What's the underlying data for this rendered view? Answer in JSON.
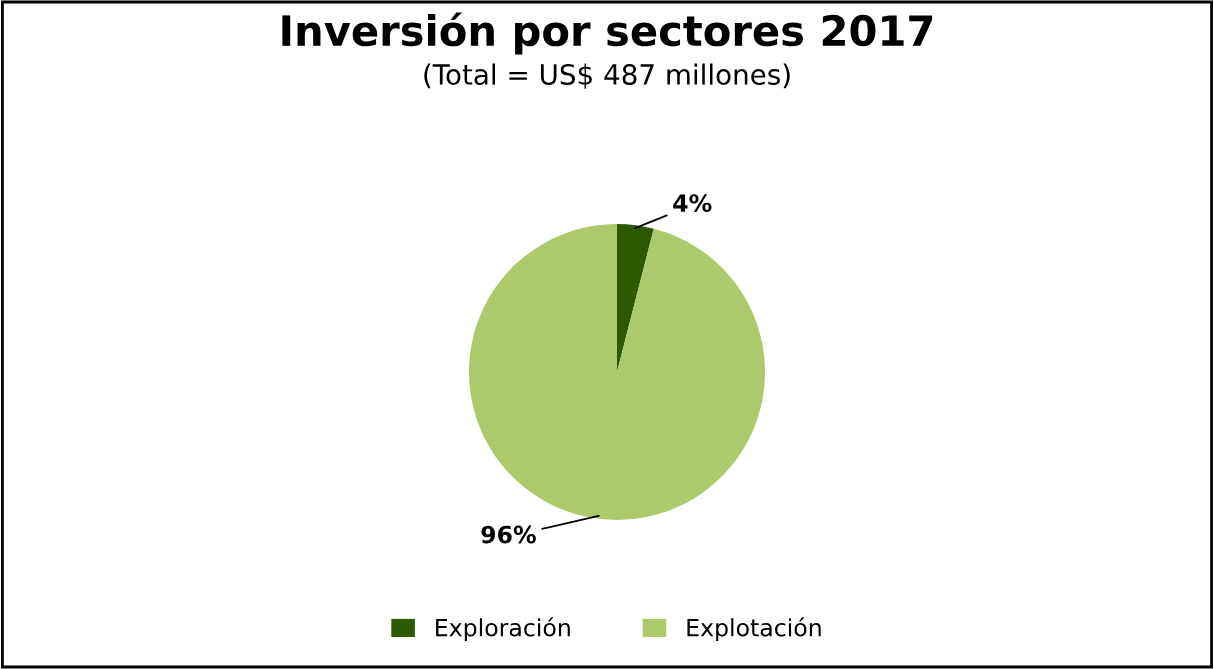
{
  "chart_data": {
    "type": "pie",
    "title": "Inversión por sectores 2017",
    "subtitle": "(Total = US$ 487 millones)",
    "categories": [
      "Exploración",
      "Explotación"
    ],
    "values": [
      4,
      96
    ],
    "colors": [
      "#2d5a00",
      "#acc96b"
    ],
    "value_labels": [
      "4%",
      "96%"
    ],
    "legend": "bottom"
  }
}
